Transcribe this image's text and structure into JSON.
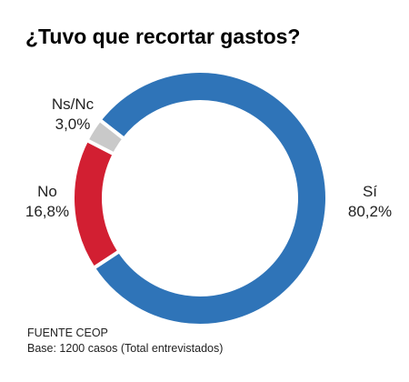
{
  "chart_data": {
    "type": "donut",
    "title": "¿Tuvo que recortar gastos?",
    "categories": [
      "Sí",
      "No",
      "Ns/Nc"
    ],
    "values": [
      80.2,
      16.8,
      3.0
    ],
    "value_labels": [
      "80,2%",
      "16,8%",
      "3,0%"
    ],
    "colors": [
      "#2f74b8",
      "#d21f32",
      "#c9c9c9"
    ],
    "notes": [
      "FUENTE CEOP",
      "Base: 1200 casos (Total entrevistados)"
    ]
  }
}
